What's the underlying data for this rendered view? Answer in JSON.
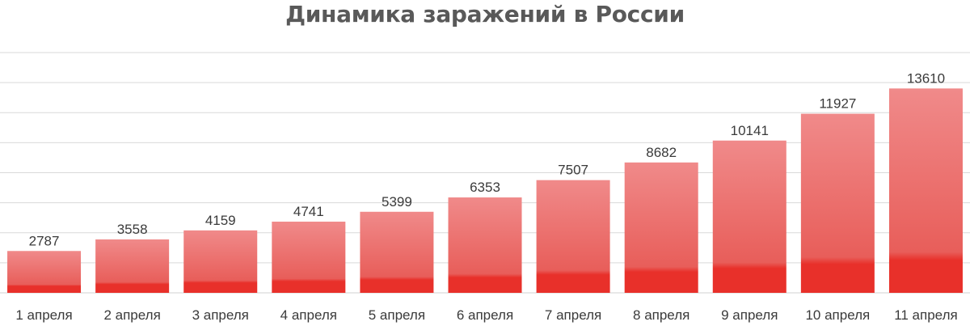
{
  "chart_data": {
    "type": "bar",
    "title": "Динамика заражений в России",
    "categories": [
      "1 апреля",
      "2 апреля",
      "3 апреля",
      "4 апреля",
      "5 апреля",
      "6 апреля",
      "7 апреля",
      "8 апреля",
      "9 апреля",
      "10 апреля",
      "11 апреля"
    ],
    "values": [
      2787,
      3558,
      4159,
      4741,
      5399,
      6353,
      7507,
      8682,
      10141,
      11927,
      13610
    ],
    "ylim": [
      0,
      16000
    ],
    "grid": true,
    "bar_color_top": "#f08a8a",
    "bar_color_bottom": "#e8302a",
    "gridline_color": "#d9d9d9"
  }
}
